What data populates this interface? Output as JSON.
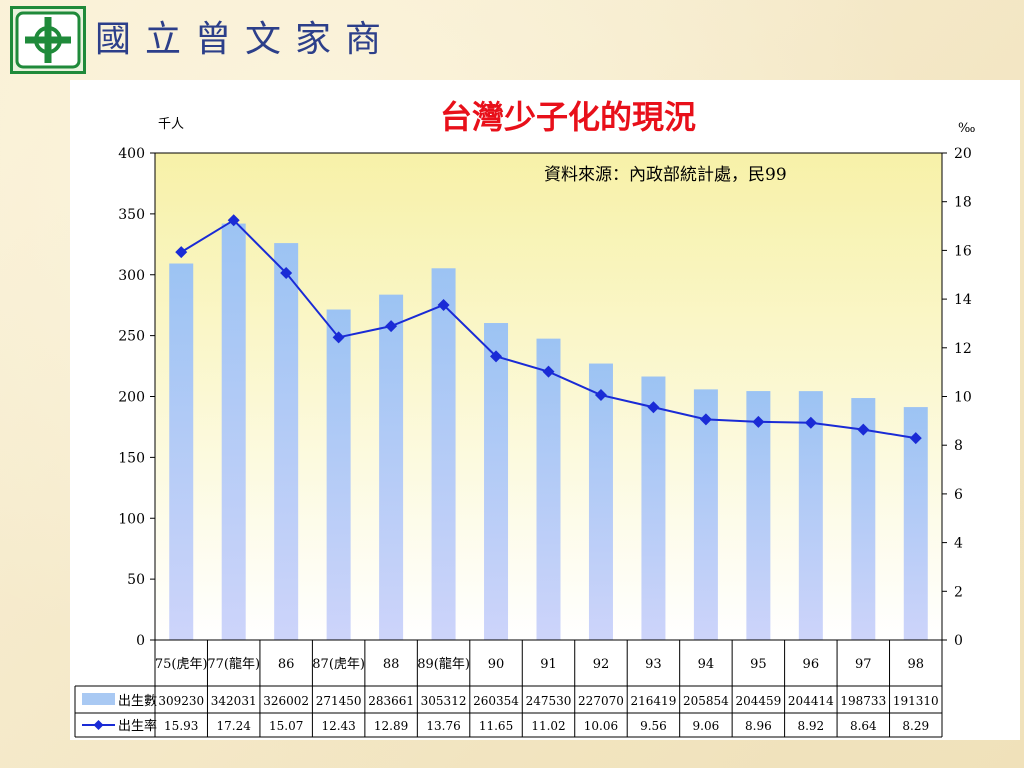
{
  "header": {
    "logo_icon": "school-emblem-icon",
    "logo_color": "#1f8a3a",
    "school_name": "國立曾文家商"
  },
  "colors": {
    "title": "#e8101a",
    "bar": "#9fc4f2",
    "line": "#1a2bd6",
    "plot_top": "#f7f1a8",
    "plot_bottom": "#ffffff"
  },
  "chart_data": {
    "type": "bar",
    "title": "台灣少子化的現況",
    "source_note": "資料來源：內政部統計處，民99",
    "left_axis": {
      "unit": "千人",
      "ylim": [
        0,
        400
      ],
      "ticks": [
        0,
        50,
        100,
        150,
        200,
        250,
        300,
        350,
        400
      ]
    },
    "right_axis": {
      "unit": "‰",
      "ylim": [
        0,
        20
      ],
      "ticks": [
        0,
        2,
        4,
        6,
        8,
        10,
        12,
        14,
        16,
        18,
        20
      ]
    },
    "categories": [
      "75(虎年)",
      "77(龍年)",
      "86",
      "87(虎年)",
      "88",
      "89(龍年)",
      "90",
      "91",
      "92",
      "93",
      "94",
      "95",
      "96",
      "97",
      "98"
    ],
    "series": [
      {
        "name": "出生數",
        "type": "bar",
        "axis": "left",
        "values": [
          309230,
          342031,
          326002,
          271450,
          283661,
          305312,
          260354,
          247530,
          227070,
          216419,
          205854,
          204459,
          204414,
          198733,
          191310
        ]
      },
      {
        "name": "出生率",
        "type": "line",
        "axis": "right",
        "values": [
          "15.93",
          "17.24",
          "15.07",
          "12.43",
          "12.89",
          "13.76",
          "11.65",
          "11.02",
          "10.06",
          "9.56",
          "9.06",
          "8.96",
          "8.92",
          "8.64",
          "8.29"
        ]
      }
    ],
    "grid": false,
    "legend": "data-table-below"
  }
}
